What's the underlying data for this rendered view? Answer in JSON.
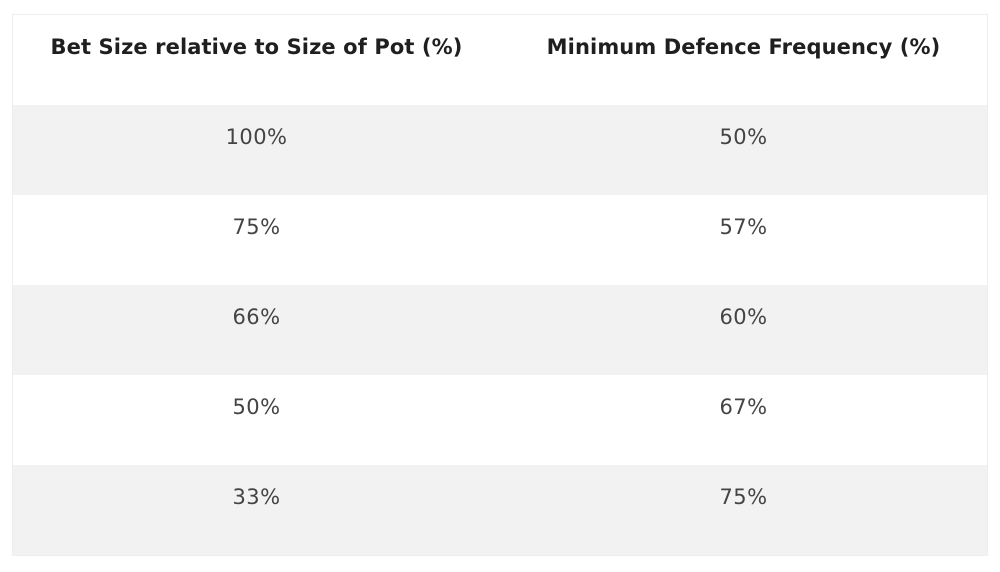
{
  "table": {
    "headers": [
      "Bet Size relative to Size of Pot (%)",
      "Minimum Defence Frequency (%)"
    ],
    "rows": [
      [
        "100%",
        "50%"
      ],
      [
        "75%",
        "57%"
      ],
      [
        "66%",
        "60%"
      ],
      [
        "50%",
        "67%"
      ],
      [
        "33%",
        "75%"
      ]
    ]
  },
  "colors": {
    "header_text": "#1f1f1f",
    "cell_text": "#444444",
    "row_stripe": "#f2f2f2",
    "row_plain": "#ffffff"
  }
}
